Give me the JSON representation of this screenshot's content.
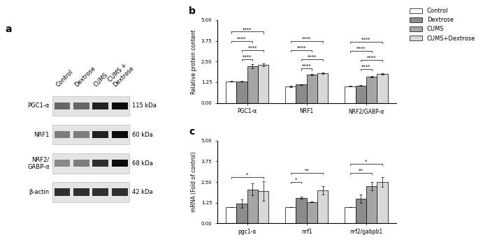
{
  "blot": {
    "panel": "a",
    "lanes": [
      "Control",
      "Dextrose",
      "CUMS",
      "CUMS +\nDextrose"
    ],
    "rows": [
      {
        "label": "PGC1-α",
        "size": "115 kDa"
      },
      {
        "label": "NRF1",
        "size": "60 kDa"
      },
      {
        "label": "NRF2/\nGABP-α",
        "size": "68 kDa"
      },
      {
        "label": "β-actin",
        "size": "42 kDa"
      }
    ]
  },
  "chart_data": [
    {
      "type": "bar",
      "title": "b",
      "y_label": "Relative protein content",
      "categories": [
        "PGC1-α",
        "NRF1",
        "NRF2/GABP-α"
      ],
      "series": [
        {
          "name": "Control",
          "color": "#ffffff",
          "values": [
            1.3,
            1.0,
            1.0
          ],
          "errors": [
            0.02,
            0.03,
            0.02
          ]
        },
        {
          "name": "Dextrose",
          "color": "#8c8c8c",
          "values": [
            1.3,
            1.1,
            1.05
          ],
          "errors": [
            0.03,
            0.03,
            0.03
          ]
        },
        {
          "name": "CUMS",
          "color": "#a6a6a6",
          "values": [
            2.2,
            1.7,
            1.6
          ],
          "errors": [
            0.12,
            0.03,
            0.04
          ]
        },
        {
          "name": "CUMS+Dextrose",
          "color": "#d9d9d9",
          "values": [
            2.3,
            1.8,
            1.75
          ],
          "errors": [
            0.1,
            0.03,
            0.05
          ]
        }
      ],
      "significance": [
        [
          {
            "pair": [
              1,
              2
            ],
            "label": "****"
          },
          {
            "pair": [
              1,
              3
            ],
            "label": "****"
          },
          {
            "pair": [
              0,
              2
            ],
            "label": "****"
          },
          {
            "pair": [
              0,
              3
            ],
            "label": "****"
          }
        ],
        [
          {
            "pair": [
              1,
              2
            ],
            "label": "****"
          },
          {
            "pair": [
              1,
              3
            ],
            "label": "****"
          },
          {
            "pair": [
              0,
              2
            ],
            "label": "****"
          },
          {
            "pair": [
              0,
              3
            ],
            "label": "****"
          }
        ],
        [
          {
            "pair": [
              1,
              2
            ],
            "label": "****"
          },
          {
            "pair": [
              1,
              3
            ],
            "label": "****"
          },
          {
            "pair": [
              0,
              2
            ],
            "label": "****"
          },
          {
            "pair": [
              0,
              3
            ],
            "label": "****"
          }
        ]
      ],
      "ylim": [
        0,
        5
      ],
      "yticks": [
        {
          "value": 0,
          "label": "0.00"
        },
        {
          "value": 1.25,
          "label": "1.25"
        },
        {
          "value": 2.5,
          "label": "2.50"
        },
        {
          "value": 3.75,
          "label": "3.75"
        },
        {
          "value": 5,
          "label": "5.00"
        }
      ],
      "grid": false,
      "legend": "upper right"
    },
    {
      "type": "bar",
      "title": "c",
      "y_label": "mRNA (Fold of control)",
      "categories": [
        "pgc1-α",
        "nrf1",
        "nrf2/gabpb1"
      ],
      "series": [
        {
          "name": "Control",
          "color": "#ffffff",
          "values": [
            1.0,
            1.0,
            1.0
          ],
          "errors": [
            0,
            0,
            0
          ]
        },
        {
          "name": "Dextrose",
          "color": "#8c8c8c",
          "values": [
            1.2,
            1.55,
            1.5
          ],
          "errors": [
            0.25,
            0.05,
            0.25
          ]
        },
        {
          "name": "CUMS",
          "color": "#a6a6a6",
          "values": [
            2.05,
            1.3,
            2.25
          ],
          "errors": [
            0.35,
            0.03,
            0.25
          ]
        },
        {
          "name": "CUMS+Dextrose",
          "color": "#d9d9d9",
          "values": [
            1.95,
            2.0,
            2.5
          ],
          "errors": [
            0.6,
            0.25,
            0.3
          ]
        }
      ],
      "significance": [
        [
          {
            "pair": [
              0,
              3
            ],
            "label": "*"
          }
        ],
        [
          {
            "pair": [
              0,
              1
            ],
            "label": "*"
          },
          {
            "pair": [
              0,
              3
            ],
            "label": "**"
          }
        ],
        [
          {
            "pair": [
              0,
              2
            ],
            "label": "**"
          },
          {
            "pair": [
              0,
              3
            ],
            "label": "*"
          }
        ]
      ],
      "ylim": [
        0,
        5
      ],
      "yticks": [
        {
          "value": 0,
          "label": "0.00"
        },
        {
          "value": 1.25,
          "label": "1.25"
        },
        {
          "value": 2.5,
          "label": "2.50"
        },
        {
          "value": 3.75,
          "label": "3.75"
        },
        {
          "value": 5,
          "label": "5.00"
        }
      ],
      "grid": false
    }
  ]
}
